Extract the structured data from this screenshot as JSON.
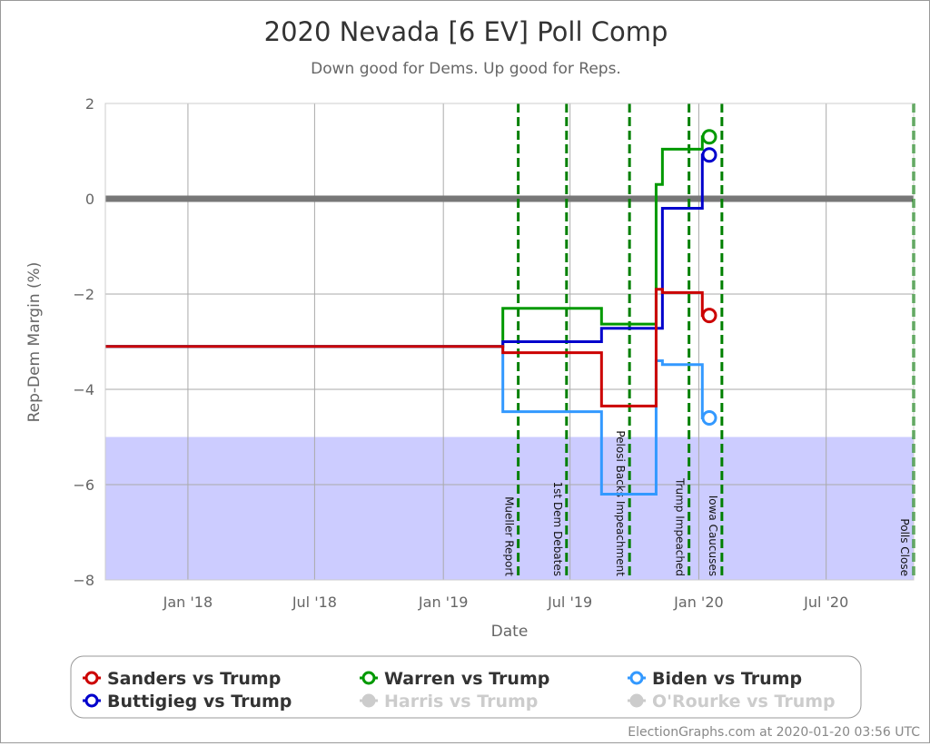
{
  "chart_data": {
    "type": "line",
    "title": "2020 Nevada [6 EV] Poll Comp",
    "subtitle": "Down good for Dems. Up good for Reps.",
    "xlabel": "Date",
    "ylabel": "Rep-Dem Margin (%)",
    "xlim": [
      "2017-09-05",
      "2020-11-03"
    ],
    "ylim": [
      -8,
      2
    ],
    "yticks": [
      2,
      0,
      -2,
      -4,
      -6,
      -8
    ],
    "yticklabels": [
      "2",
      "0",
      "−2",
      "−4",
      "−6",
      "−8"
    ],
    "xticks": [
      {
        "date": "2018-01-01",
        "label": "Jan '18"
      },
      {
        "date": "2018-07-01",
        "label": "Jul '18"
      },
      {
        "date": "2019-01-01",
        "label": "Jan '19"
      },
      {
        "date": "2019-07-01",
        "label": "Jul '19"
      },
      {
        "date": "2020-01-01",
        "label": "Jan '20"
      },
      {
        "date": "2020-07-01",
        "label": "Jul '20"
      }
    ],
    "grid": true,
    "shaded_region": {
      "from": -8,
      "to": -5,
      "color": "#ccccff"
    },
    "zero_line_color": "#777777",
    "events": [
      {
        "date": "2019-04-18",
        "label": "Mueller Report"
      },
      {
        "date": "2019-06-26",
        "label": "1st Dem Debates"
      },
      {
        "date": "2019-09-24",
        "label": "Pelosi Backs Impeachment"
      },
      {
        "date": "2019-12-18",
        "label": "Trump Impeached"
      },
      {
        "date": "2020-02-03",
        "label": "Iowa Caucuses"
      },
      {
        "date": "2020-11-03",
        "label": "Polls Close"
      }
    ],
    "event_color": "#008000",
    "series": [
      {
        "name": "Warren vs Trump",
        "color": "#009900",
        "points": [
          [
            "2017-09-05",
            -3.1
          ],
          [
            "2019-03-27",
            -2.3
          ],
          [
            "2019-08-15",
            -2.63
          ],
          [
            "2019-11-01",
            0.3
          ],
          [
            "2019-11-10",
            1.04
          ],
          [
            "2020-01-06",
            1.3
          ]
        ],
        "end": [
          "2020-01-16",
          1.3
        ]
      },
      {
        "name": "Buttigieg vs Trump",
        "color": "#0000cc",
        "points": [
          [
            "2017-09-05",
            -3.1
          ],
          [
            "2019-03-27",
            -3.0
          ],
          [
            "2019-08-15",
            -2.72
          ],
          [
            "2019-11-10",
            -0.2
          ],
          [
            "2020-01-06",
            0.92
          ]
        ],
        "end": [
          "2020-01-16",
          0.92
        ]
      },
      {
        "name": "Biden vs Trump",
        "color": "#3399ff",
        "points": [
          [
            "2017-09-05",
            -3.1
          ],
          [
            "2019-03-27",
            -4.47
          ],
          [
            "2019-08-15",
            -6.2
          ],
          [
            "2019-11-01",
            -3.4
          ],
          [
            "2019-11-10",
            -3.48
          ],
          [
            "2020-01-06",
            -4.6
          ]
        ],
        "end": [
          "2020-01-16",
          -4.6
        ]
      },
      {
        "name": "Sanders vs Trump",
        "color": "#cc0000",
        "points": [
          [
            "2017-09-05",
            -3.1
          ],
          [
            "2019-03-27",
            -3.23
          ],
          [
            "2019-08-15",
            -4.35
          ],
          [
            "2019-11-01",
            -1.9
          ],
          [
            "2019-11-10",
            -1.97
          ],
          [
            "2020-01-06",
            -2.45
          ]
        ],
        "end": [
          "2020-01-16",
          -2.45
        ]
      }
    ],
    "legend": {
      "placement": "bottom",
      "items": [
        {
          "label": "Sanders vs Trump",
          "color": "#cc0000",
          "active": true
        },
        {
          "label": "Warren vs Trump",
          "color": "#009900",
          "active": true
        },
        {
          "label": "Biden vs Trump",
          "color": "#3399ff",
          "active": true
        },
        {
          "label": "Buttigieg vs Trump",
          "color": "#0000cc",
          "active": true
        },
        {
          "label": "Harris vs Trump",
          "color": "#cccccc",
          "active": false
        },
        {
          "label": "O'Rourke vs Trump",
          "color": "#cccccc",
          "active": false
        }
      ]
    },
    "credit": "ElectionGraphs.com at 2020-01-20 03:56 UTC"
  }
}
